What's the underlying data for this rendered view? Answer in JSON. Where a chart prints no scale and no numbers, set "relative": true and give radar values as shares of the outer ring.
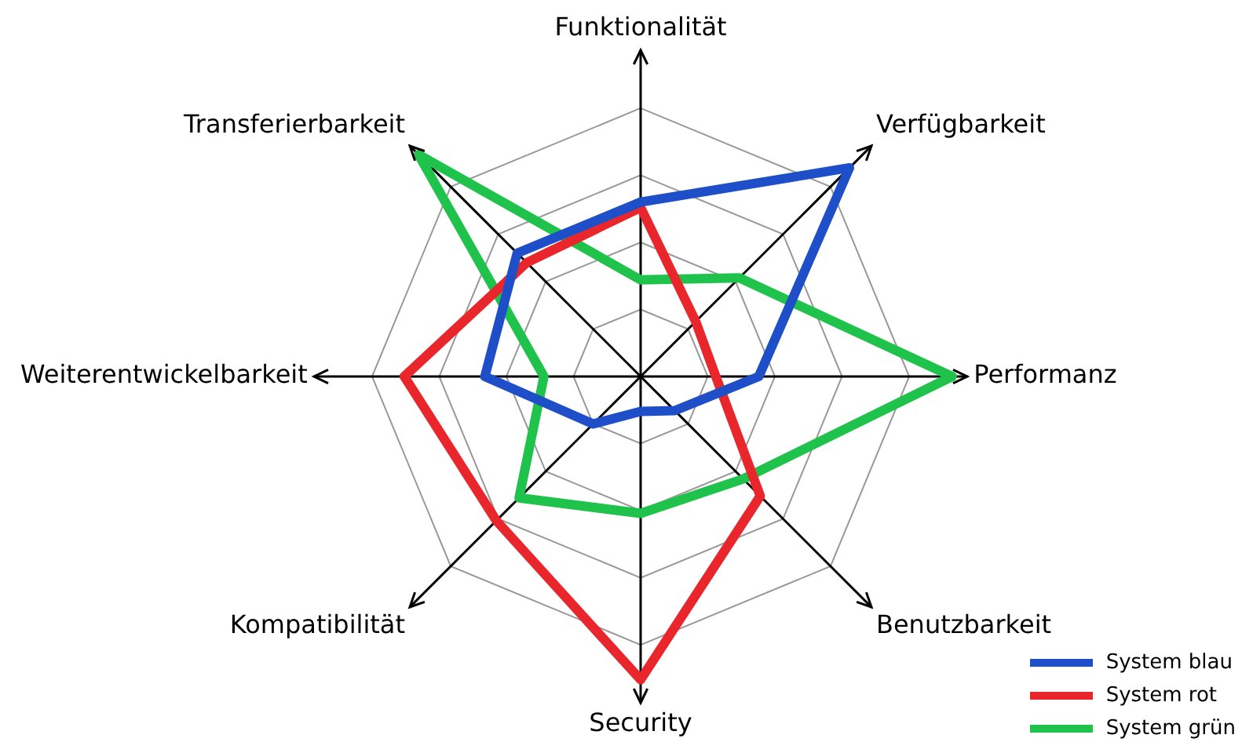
{
  "chart_data": {
    "type": "radar",
    "relative": true,
    "categories": [
      "Funktionalität",
      "Verfügbarkeit",
      "Performanz",
      "Benutzbarkeit",
      "Security",
      "Kompatibilität",
      "Weiterentwickelbarkeit",
      "Transferierbarkeit"
    ],
    "legend": "bottom right",
    "marker": "none",
    "series": [
      {
        "name": "System blau",
        "color": "#1f4fc8",
        "values": [
          0.65,
          1.1,
          0.44,
          0.18,
          0.13,
          0.25,
          0.58,
          0.65
        ]
      },
      {
        "name": "System rot",
        "color": "#e8262b",
        "values": [
          0.63,
          0.29,
          0.28,
          0.63,
          1.13,
          0.76,
          0.88,
          0.6
        ]
      },
      {
        "name": "System grün",
        "color": "#1fc24a",
        "values": [
          0.36,
          0.52,
          1.16,
          0.54,
          0.51,
          0.64,
          0.36,
          1.17
        ]
      }
    ]
  }
}
